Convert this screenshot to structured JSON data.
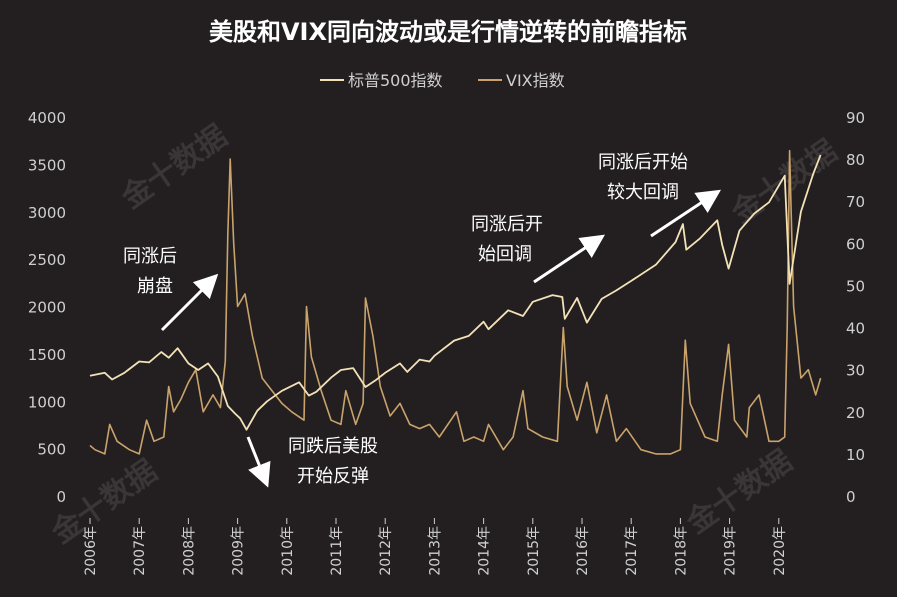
{
  "chart_data": {
    "type": "line",
    "title": "美股和VIX同向波动或是行情逆转的前瞻指标",
    "legend": {
      "placement": "top-center"
    },
    "series": [
      {
        "name": "标普500指数",
        "axis": "left",
        "color": "#f3e2b8",
        "points": [
          [
            2006.0,
            1270
          ],
          [
            2006.3,
            1300
          ],
          [
            2006.45,
            1230
          ],
          [
            2006.7,
            1300
          ],
          [
            2007.0,
            1420
          ],
          [
            2007.2,
            1410
          ],
          [
            2007.45,
            1520
          ],
          [
            2007.6,
            1460
          ],
          [
            2007.78,
            1560
          ],
          [
            2008.0,
            1400
          ],
          [
            2008.2,
            1330
          ],
          [
            2008.4,
            1400
          ],
          [
            2008.6,
            1260
          ],
          [
            2008.8,
            950
          ],
          [
            2008.95,
            870
          ],
          [
            2009.05,
            820
          ],
          [
            2009.18,
            700
          ],
          [
            2009.4,
            900
          ],
          [
            2009.6,
            1000
          ],
          [
            2009.9,
            1110
          ],
          [
            2010.25,
            1200
          ],
          [
            2010.45,
            1060
          ],
          [
            2010.6,
            1100
          ],
          [
            2010.9,
            1250
          ],
          [
            2011.1,
            1330
          ],
          [
            2011.35,
            1350
          ],
          [
            2011.6,
            1150
          ],
          [
            2011.8,
            1220
          ],
          [
            2012.0,
            1300
          ],
          [
            2012.3,
            1400
          ],
          [
            2012.45,
            1310
          ],
          [
            2012.7,
            1440
          ],
          [
            2012.9,
            1420
          ],
          [
            2013.0,
            1480
          ],
          [
            2013.4,
            1640
          ],
          [
            2013.7,
            1690
          ],
          [
            2014.0,
            1840
          ],
          [
            2014.1,
            1760
          ],
          [
            2014.5,
            1960
          ],
          [
            2014.8,
            1900
          ],
          [
            2015.0,
            2050
          ],
          [
            2015.4,
            2120
          ],
          [
            2015.6,
            2100
          ],
          [
            2015.65,
            1870
          ],
          [
            2015.9,
            2090
          ],
          [
            2016.1,
            1830
          ],
          [
            2016.4,
            2080
          ],
          [
            2016.7,
            2170
          ],
          [
            2017.0,
            2270
          ],
          [
            2017.5,
            2440
          ],
          [
            2017.9,
            2680
          ],
          [
            2018.05,
            2870
          ],
          [
            2018.12,
            2600
          ],
          [
            2018.4,
            2720
          ],
          [
            2018.75,
            2910
          ],
          [
            2018.85,
            2650
          ],
          [
            2018.98,
            2400
          ],
          [
            2019.2,
            2800
          ],
          [
            2019.5,
            2980
          ],
          [
            2019.8,
            3100
          ],
          [
            2020.12,
            3380
          ],
          [
            2020.22,
            2240
          ],
          [
            2020.45,
            3000
          ],
          [
            2020.7,
            3400
          ],
          [
            2020.85,
            3600
          ]
        ]
      },
      {
        "name": "VIX指数",
        "axis": "right",
        "color": "#c9a36b",
        "points": [
          [
            2006.0,
            12
          ],
          [
            2006.1,
            11
          ],
          [
            2006.3,
            10
          ],
          [
            2006.4,
            17
          ],
          [
            2006.55,
            13
          ],
          [
            2006.8,
            11
          ],
          [
            2007.0,
            10
          ],
          [
            2007.15,
            18
          ],
          [
            2007.3,
            13
          ],
          [
            2007.5,
            14
          ],
          [
            2007.6,
            26
          ],
          [
            2007.7,
            20
          ],
          [
            2007.85,
            23
          ],
          [
            2008.0,
            27
          ],
          [
            2008.15,
            30
          ],
          [
            2008.3,
            20
          ],
          [
            2008.5,
            24
          ],
          [
            2008.65,
            21
          ],
          [
            2008.75,
            32
          ],
          [
            2008.8,
            62
          ],
          [
            2008.85,
            80
          ],
          [
            2008.92,
            60
          ],
          [
            2009.0,
            45
          ],
          [
            2009.15,
            48
          ],
          [
            2009.3,
            38
          ],
          [
            2009.5,
            28
          ],
          [
            2009.7,
            25
          ],
          [
            2009.9,
            22
          ],
          [
            2010.1,
            20
          ],
          [
            2010.35,
            18
          ],
          [
            2010.4,
            45
          ],
          [
            2010.5,
            33
          ],
          [
            2010.7,
            25
          ],
          [
            2010.9,
            18
          ],
          [
            2011.1,
            17
          ],
          [
            2011.2,
            25
          ],
          [
            2011.4,
            17
          ],
          [
            2011.55,
            22
          ],
          [
            2011.6,
            47
          ],
          [
            2011.75,
            38
          ],
          [
            2011.9,
            26
          ],
          [
            2012.1,
            19
          ],
          [
            2012.3,
            22
          ],
          [
            2012.5,
            17
          ],
          [
            2012.7,
            16
          ],
          [
            2012.9,
            17
          ],
          [
            2013.1,
            14
          ],
          [
            2013.45,
            20
          ],
          [
            2013.6,
            13
          ],
          [
            2013.8,
            14
          ],
          [
            2014.0,
            13
          ],
          [
            2014.1,
            17
          ],
          [
            2014.4,
            11
          ],
          [
            2014.6,
            14
          ],
          [
            2014.8,
            25
          ],
          [
            2014.9,
            16
          ],
          [
            2015.2,
            14
          ],
          [
            2015.5,
            13
          ],
          [
            2015.62,
            40
          ],
          [
            2015.7,
            26
          ],
          [
            2015.9,
            18
          ],
          [
            2016.1,
            27
          ],
          [
            2016.3,
            15
          ],
          [
            2016.5,
            24
          ],
          [
            2016.7,
            13
          ],
          [
            2016.9,
            16
          ],
          [
            2017.2,
            11
          ],
          [
            2017.5,
            10
          ],
          [
            2017.8,
            10
          ],
          [
            2018.0,
            11
          ],
          [
            2018.1,
            37
          ],
          [
            2018.2,
            22
          ],
          [
            2018.5,
            14
          ],
          [
            2018.75,
            13
          ],
          [
            2018.85,
            24
          ],
          [
            2018.98,
            36
          ],
          [
            2019.1,
            18
          ],
          [
            2019.35,
            14
          ],
          [
            2019.4,
            21
          ],
          [
            2019.6,
            24
          ],
          [
            2019.8,
            13
          ],
          [
            2020.0,
            13
          ],
          [
            2020.12,
            14
          ],
          [
            2020.17,
            40
          ],
          [
            2020.22,
            82
          ],
          [
            2020.3,
            45
          ],
          [
            2020.45,
            28
          ],
          [
            2020.6,
            30
          ],
          [
            2020.75,
            24
          ],
          [
            2020.85,
            28
          ]
        ]
      }
    ],
    "x_ticks": [
      "2006年",
      "2007年",
      "2008年",
      "2009年",
      "2010年",
      "2011年",
      "2012年",
      "2013年",
      "2014年",
      "2015年",
      "2016年",
      "2017年",
      "2018年",
      "2019年",
      "2020年"
    ],
    "y_left_ticks": [
      "0",
      "500",
      "1000",
      "1500",
      "2000",
      "2500",
      "3000",
      "3500",
      "4000"
    ],
    "y_right_ticks": [
      "0",
      "10",
      "20",
      "30",
      "40",
      "50",
      "60",
      "70",
      "80",
      "90"
    ],
    "xlim": [
      2006,
      2021
    ],
    "ylim_left": [
      0,
      4000
    ],
    "ylim_right": [
      0,
      90
    ],
    "annotations": [
      {
        "lines": [
          "同涨后",
          "崩盘"
        ]
      },
      {
        "lines": [
          "同跌后美股",
          "开始反弹"
        ]
      },
      {
        "lines": [
          "同涨后开",
          "始回调"
        ]
      },
      {
        "lines": [
          "同涨后开始",
          "较大回调"
        ]
      }
    ],
    "watermark": "金十数据"
  }
}
